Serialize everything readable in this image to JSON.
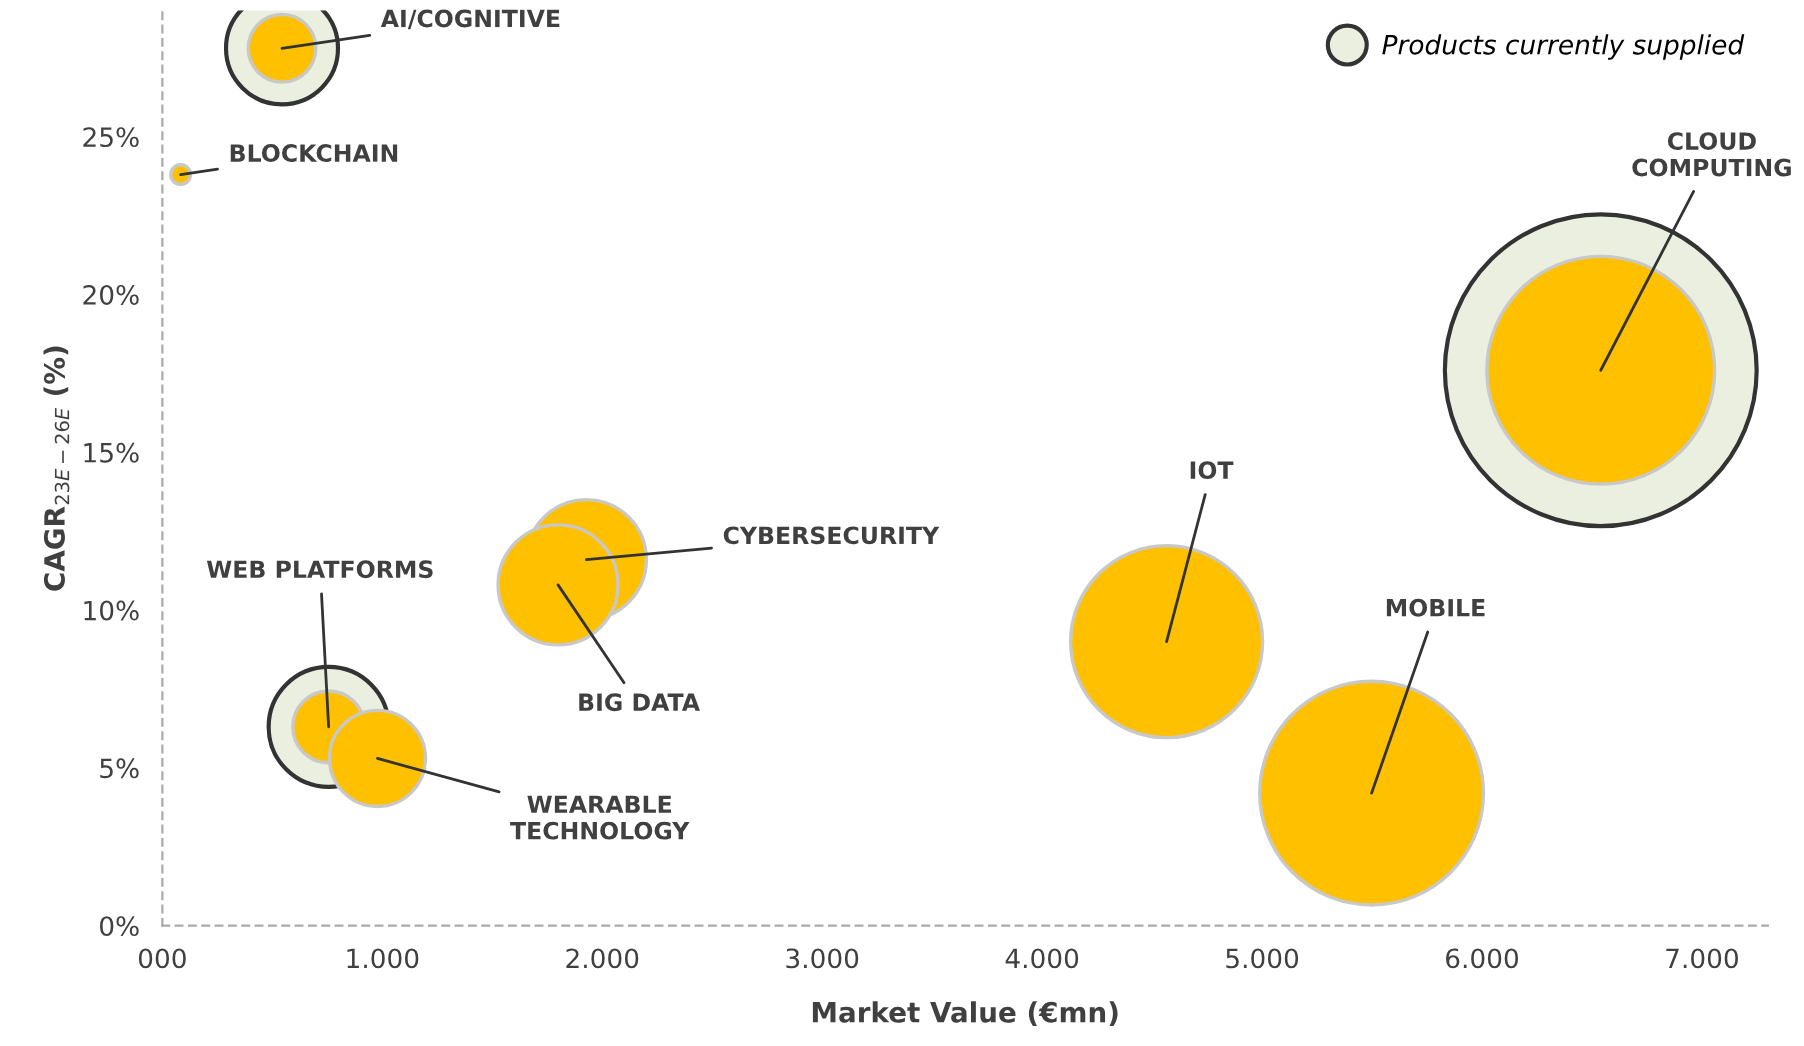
{
  "chart_data": {
    "type": "bubble",
    "xlabel": "Market Value (€mn)",
    "ylabel": "CAGR$_{23E−26E}$ (%)",
    "xlim": [
      0,
      7300
    ],
    "ylim": [
      0,
      29
    ],
    "xticks": [
      {
        "value": 0,
        "label": "000"
      },
      {
        "value": 1000,
        "label": "1.000"
      },
      {
        "value": 2000,
        "label": "2.000"
      },
      {
        "value": 3000,
        "label": "3.000"
      },
      {
        "value": 4000,
        "label": "4.000"
      },
      {
        "value": 5000,
        "label": "5.000"
      },
      {
        "value": 6000,
        "label": "6.000"
      },
      {
        "value": 7000,
        "label": "7.000"
      }
    ],
    "yticks": [
      {
        "value": 0,
        "label": "0%"
      },
      {
        "value": 5,
        "label": "5%"
      },
      {
        "value": 10,
        "label": "10%"
      },
      {
        "value": 15,
        "label": "15%"
      },
      {
        "value": 20,
        "label": "20%"
      },
      {
        "value": 25,
        "label": "25%"
      }
    ],
    "grid": false,
    "legend": "top right",
    "series": [
      {
        "name": "Products currently supplied",
        "color": "#ebefdf",
        "x": [
          544,
          756,
          6540
        ],
        "values": [
          27.8,
          6.3,
          17.6
        ],
        "sizes": [
          0.129,
          0.148,
          1
        ]
      },
      {
        "color": "#ffc000",
        "x": [
          544,
          83,
          1928,
          1799,
          756,
          978,
          4566,
          5498,
          6540
        ],
        "values": [
          27.8,
          23.8,
          11.6,
          10.8,
          6.3,
          5.3,
          9.0,
          4.2,
          17.6
        ],
        "sizes": [
          0.047,
          0.004,
          0.148,
          0.148,
          0.053,
          0.095,
          0.379,
          0.515,
          0.534
        ]
      }
    ],
    "annotations": [
      {
        "text": "AI/COGNITIVE",
        "x": 544,
        "y": 27.8
      },
      {
        "text": "BLOCKCHAIN",
        "x": 83,
        "y": 23.8
      },
      {
        "text": "CYBERSECURITY",
        "x": 1928,
        "y": 11.6
      },
      {
        "text": "BIG DATA",
        "x": 1799,
        "y": 10.8
      },
      {
        "text": "WEB PLATFORMS",
        "x": 756,
        "y": 6.3
      },
      {
        "text": "WEARABLE\nTECHNOLOGY",
        "x": 978,
        "y": 5.3
      },
      {
        "text": "IOT",
        "x": 4566,
        "y": 9.0
      },
      {
        "text": "MOBILE",
        "x": 5498,
        "y": 4.2
      },
      {
        "text": "CLOUD\nCOMPUTING",
        "x": 6540,
        "y": 17.6
      }
    ]
  }
}
